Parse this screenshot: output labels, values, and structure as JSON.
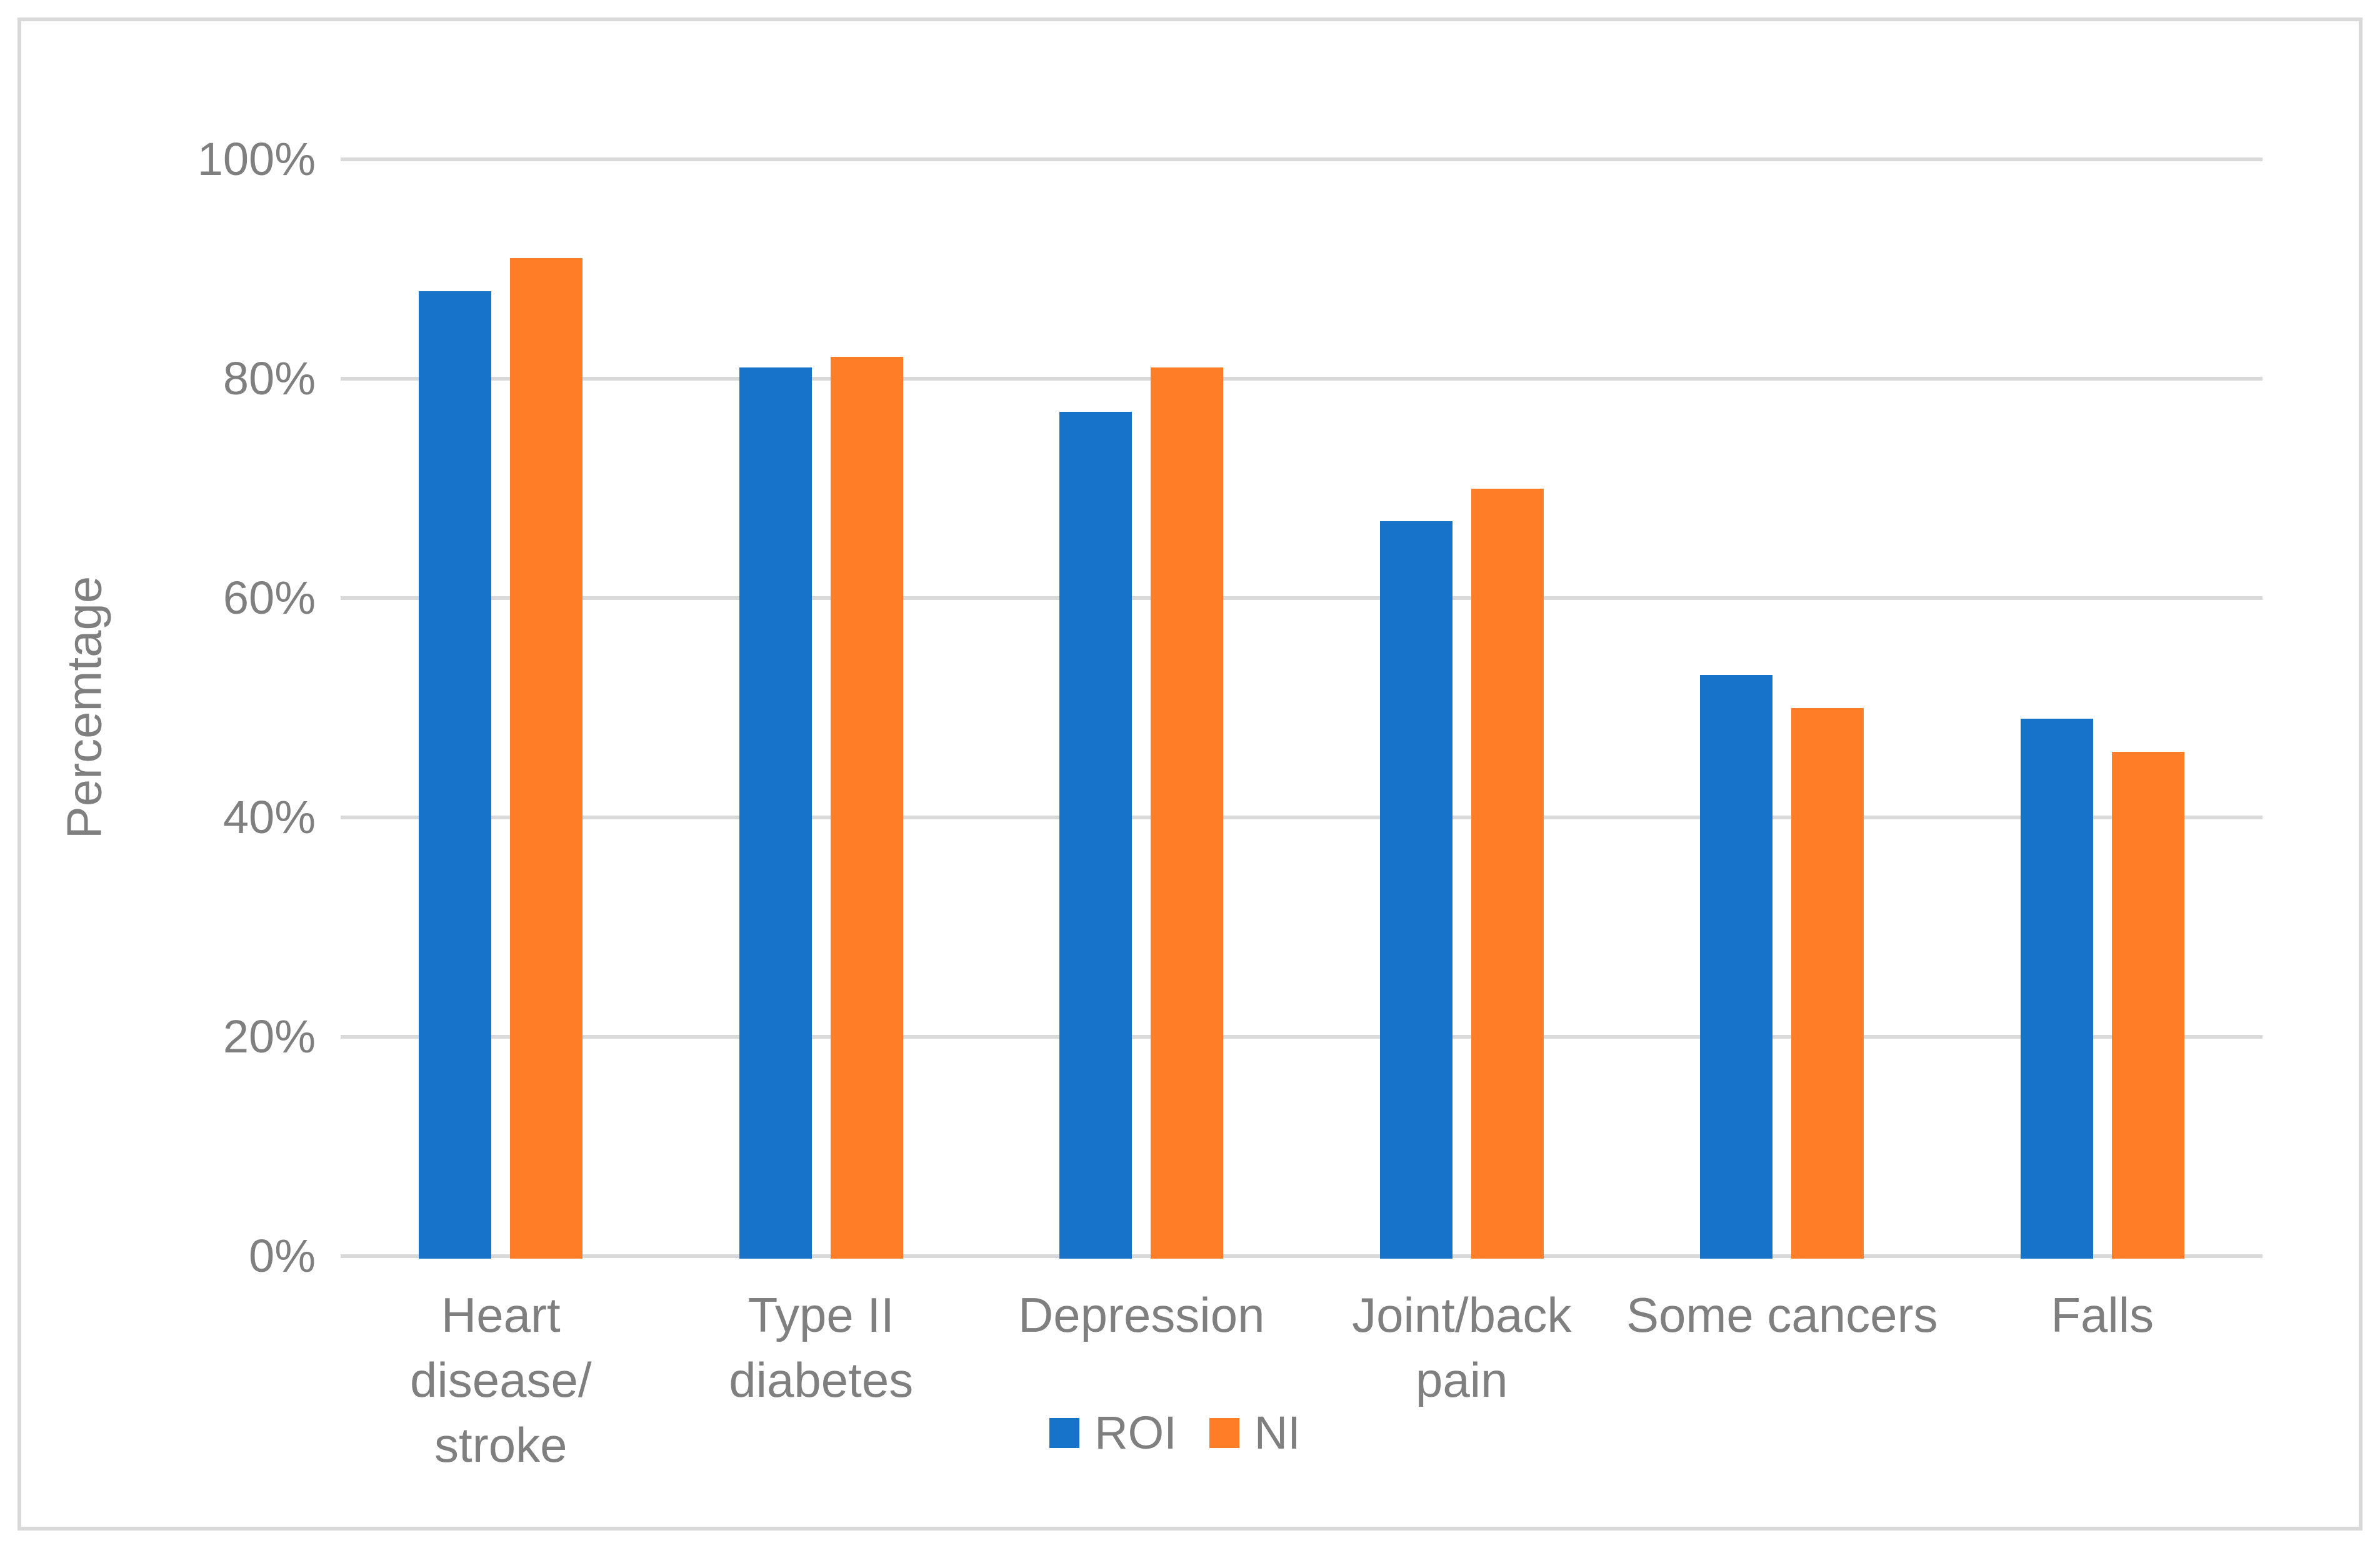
{
  "figure": {
    "background": "#ffffff",
    "border_color": "#d9d9d9"
  },
  "chart_data": {
    "type": "bar",
    "title": "",
    "xlabel": "",
    "ylabel": "Percemtage",
    "categories": [
      "Heart disease/ stroke",
      "Type II diabetes",
      "Depression",
      "Joint/back pain",
      "Some cancers",
      "Falls"
    ],
    "category_lines": [
      [
        "Heart",
        "disease/",
        "stroke"
      ],
      [
        "Type II",
        "diabetes"
      ],
      [
        "Depression"
      ],
      [
        "Joint/back",
        "pain"
      ],
      [
        "Some cancers"
      ],
      [
        "Falls"
      ]
    ],
    "series": [
      {
        "name": "ROI",
        "color": "#1773c9",
        "values": [
          88,
          81,
          77,
          67,
          53,
          49
        ]
      },
      {
        "name": "NI",
        "color": "#ff7d27",
        "values": [
          91,
          82,
          81,
          70,
          50,
          46
        ]
      }
    ],
    "y_ticks": [
      {
        "label": "100%",
        "value": 100
      },
      {
        "label": "80%",
        "value": 80
      },
      {
        "label": "60%",
        "value": 60
      },
      {
        "label": "40%",
        "value": 40
      },
      {
        "label": "20%",
        "value": 20
      },
      {
        "label": "0%",
        "value": 0
      }
    ],
    "ylim": [
      0,
      100
    ],
    "grid": true,
    "gridline_color": "#d9d9d9",
    "text_color": "#7f7f7f",
    "legend_position": "bottom"
  }
}
